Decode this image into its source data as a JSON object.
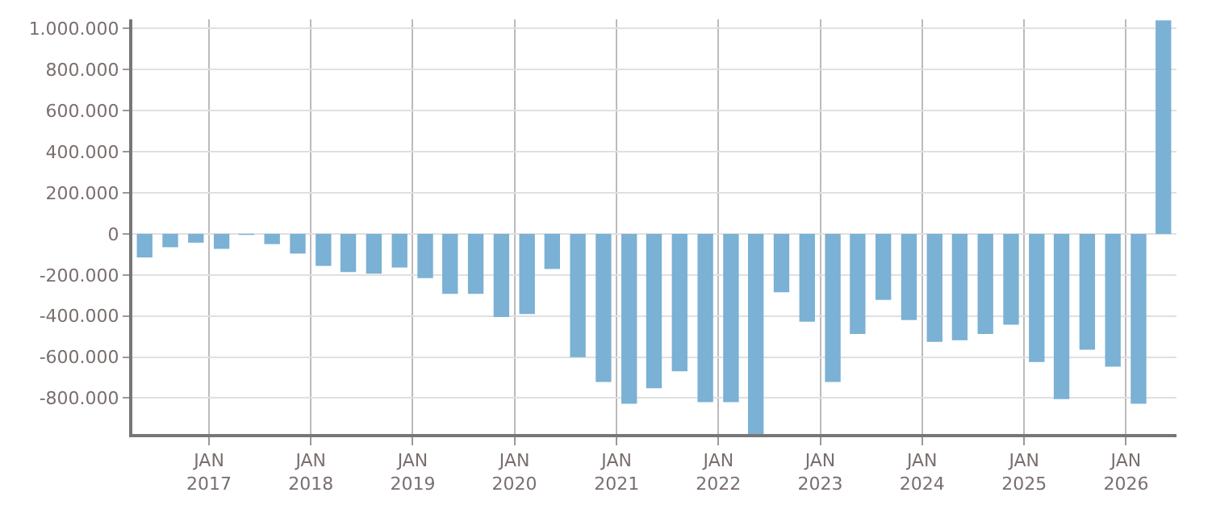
{
  "chart_data": {
    "type": "bar",
    "color": "#7ab1d4",
    "grid": true,
    "x": [
      "2016-05-15",
      "2016-08-15",
      "2016-11-15",
      "2017-02-15",
      "2017-05-15",
      "2017-08-15",
      "2017-11-15",
      "2018-02-15",
      "2018-05-15",
      "2018-08-15",
      "2018-11-15",
      "2019-02-15",
      "2019-05-15",
      "2019-08-15",
      "2019-11-15",
      "2020-02-15",
      "2020-05-15",
      "2020-08-15",
      "2020-11-15",
      "2021-02-15",
      "2021-05-15",
      "2021-08-15",
      "2021-11-15",
      "2022-02-15",
      "2022-05-15",
      "2022-08-15",
      "2022-11-15",
      "2023-02-15",
      "2023-05-15",
      "2023-08-15",
      "2023-11-15",
      "2024-02-15",
      "2024-05-15",
      "2024-08-15",
      "2024-11-15",
      "2025-02-15",
      "2025-05-15",
      "2025-08-15",
      "2025-11-15",
      "2026-02-15",
      "2026-05-15"
    ],
    "values": [
      -115000,
      -65000,
      -43000,
      -73000,
      -5000,
      -50000,
      -96000,
      -156000,
      -186000,
      -194000,
      -164000,
      -216000,
      -292000,
      -292000,
      -405000,
      -390000,
      -171000,
      -601000,
      -722000,
      -828000,
      -752000,
      -669000,
      -820000,
      -820000,
      -975000,
      -284000,
      -428000,
      -722000,
      -488000,
      -322000,
      -420000,
      -526000,
      -518000,
      -488000,
      -443000,
      -624000,
      -805000,
      -564000,
      -647000,
      -828000,
      1040000
    ],
    "xlim": [
      "2016-04-01",
      "2026-07-01"
    ],
    "xticks": [
      {
        "value": "2017-01-01",
        "label": "JAN\n2017"
      },
      {
        "value": "2018-01-01",
        "label": "JAN\n2018"
      },
      {
        "value": "2019-01-01",
        "label": "JAN\n2019"
      },
      {
        "value": "2020-01-01",
        "label": "JAN\n2020"
      },
      {
        "value": "2021-01-01",
        "label": "JAN\n2021"
      },
      {
        "value": "2022-01-01",
        "label": "JAN\n2022"
      },
      {
        "value": "2023-01-01",
        "label": "JAN\n2023"
      },
      {
        "value": "2024-01-01",
        "label": "JAN\n2024"
      },
      {
        "value": "2025-01-01",
        "label": "JAN\n2025"
      },
      {
        "value": "2026-01-01",
        "label": "JAN\n2026"
      }
    ],
    "ylim": [
      -975000,
      1045000
    ],
    "yticks": [
      {
        "value": -800000,
        "label": "-800.000"
      },
      {
        "value": -600000,
        "label": "-600.000"
      },
      {
        "value": -400000,
        "label": "-400.000"
      },
      {
        "value": -200000,
        "label": "-200.000"
      },
      0,
      {
        "value": 200000,
        "label": "200.000"
      },
      {
        "value": 400000,
        "label": "400.000"
      },
      {
        "value": 600000,
        "label": "600.000"
      },
      {
        "value": 800000,
        "label": "800.000"
      },
      {
        "value": 1000000,
        "label": "1.000.000"
      }
    ]
  }
}
